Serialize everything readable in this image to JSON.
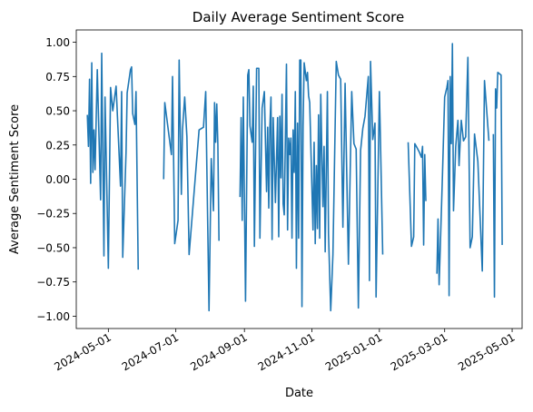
{
  "chart_data": {
    "type": "line",
    "title": "Daily Average Sentiment Score",
    "xlabel": "Date",
    "ylabel": "Average Sentiment Score",
    "xlim": [
      "2024-04-02",
      "2025-05-10"
    ],
    "ylim": [
      -1.09,
      1.09
    ],
    "grid": false,
    "line_color": "#1f77b4",
    "x_ticks": [
      {
        "date": "2024-05-01",
        "label": "2024-05-01"
      },
      {
        "date": "2024-07-01",
        "label": "2024-07-01"
      },
      {
        "date": "2024-09-01",
        "label": "2024-09-01"
      },
      {
        "date": "2024-11-01",
        "label": "2024-11-01"
      },
      {
        "date": "2025-01-01",
        "label": "2025-01-01"
      },
      {
        "date": "2025-03-01",
        "label": "2025-03-01"
      },
      {
        "date": "2025-05-01",
        "label": "2025-05-01"
      }
    ],
    "y_ticks": [
      {
        "value": 1.0,
        "label": "1.00"
      },
      {
        "value": 0.75,
        "label": "0.75"
      },
      {
        "value": 0.5,
        "label": "0.50"
      },
      {
        "value": 0.25,
        "label": "0.25"
      },
      {
        "value": 0.0,
        "label": "0.00"
      },
      {
        "value": -0.25,
        "label": "−0.25"
      },
      {
        "value": -0.5,
        "label": "−0.50"
      },
      {
        "value": -0.75,
        "label": "−0.75"
      },
      {
        "value": -1.0,
        "label": "−1.00"
      }
    ],
    "segments": [
      [
        [
          "2024-04-12",
          0.47
        ],
        [
          "2024-04-13",
          0.24
        ],
        [
          "2024-04-14",
          0.73
        ],
        [
          "2024-04-15",
          -0.03
        ],
        [
          "2024-04-16",
          0.85
        ],
        [
          "2024-04-17",
          0.05
        ],
        [
          "2024-04-18",
          0.36
        ],
        [
          "2024-04-19",
          0.07
        ],
        [
          "2024-04-20",
          0.44
        ],
        [
          "2024-04-21",
          0.8
        ],
        [
          "2024-04-24",
          -0.15
        ],
        [
          "2024-04-25",
          0.92
        ],
        [
          "2024-04-27",
          -0.56
        ],
        [
          "2024-04-28",
          0.6
        ],
        [
          "2024-05-01",
          -0.65
        ],
        [
          "2024-05-03",
          0.67
        ],
        [
          "2024-05-05",
          0.5
        ],
        [
          "2024-05-08",
          0.68
        ],
        [
          "2024-05-12",
          -0.05
        ],
        [
          "2024-05-13",
          0.64
        ],
        [
          "2024-05-14",
          -0.57
        ],
        [
          "2024-05-17",
          0.2
        ],
        [
          "2024-05-18",
          0.63
        ],
        [
          "2024-05-21",
          0.8
        ],
        [
          "2024-05-22",
          0.82
        ],
        [
          "2024-05-23",
          0.48
        ],
        [
          "2024-05-25",
          0.4
        ],
        [
          "2024-05-26",
          0.64
        ],
        [
          "2024-05-28",
          -0.66
        ]
      ],
      [
        [
          "2024-06-20",
          0.0
        ],
        [
          "2024-06-21",
          0.56
        ],
        [
          "2024-06-27",
          0.18
        ],
        [
          "2024-06-28",
          0.75
        ],
        [
          "2024-06-30",
          -0.47
        ],
        [
          "2024-07-03",
          -0.3
        ],
        [
          "2024-07-04",
          0.87
        ],
        [
          "2024-07-06",
          -0.11
        ],
        [
          "2024-07-07",
          0.36
        ],
        [
          "2024-07-09",
          0.6
        ],
        [
          "2024-07-11",
          0.31
        ],
        [
          "2024-07-13",
          -0.55
        ],
        [
          "2024-07-22",
          0.36
        ],
        [
          "2024-07-26",
          0.38
        ],
        [
          "2024-07-28",
          0.64
        ],
        [
          "2024-07-31",
          -0.96
        ],
        [
          "2024-08-02",
          0.15
        ],
        [
          "2024-08-04",
          -0.23
        ],
        [
          "2024-08-05",
          0.56
        ],
        [
          "2024-08-06",
          0.27
        ],
        [
          "2024-08-07",
          0.55
        ],
        [
          "2024-08-08",
          0.25
        ],
        [
          "2024-08-09",
          -0.45
        ]
      ],
      [
        [
          "2024-08-28",
          -0.13
        ],
        [
          "2024-08-29",
          0.45
        ],
        [
          "2024-08-30",
          -0.3
        ],
        [
          "2024-08-31",
          0.6
        ],
        [
          "2024-09-02",
          -0.89
        ],
        [
          "2024-09-04",
          0.76
        ],
        [
          "2024-09-05",
          0.8
        ],
        [
          "2024-09-06",
          0.39
        ],
        [
          "2024-09-08",
          0.27
        ],
        [
          "2024-09-09",
          0.68
        ],
        [
          "2024-09-10",
          -0.49
        ],
        [
          "2024-09-12",
          0.81
        ],
        [
          "2024-09-14",
          0.81
        ],
        [
          "2024-09-15",
          -0.43
        ],
        [
          "2024-09-17",
          0.52
        ],
        [
          "2024-09-19",
          0.64
        ],
        [
          "2024-09-21",
          -0.09
        ],
        [
          "2024-09-22",
          0.38
        ],
        [
          "2024-09-23",
          -0.21
        ],
        [
          "2024-09-24",
          0.38
        ],
        [
          "2024-09-25",
          0.6
        ],
        [
          "2024-09-26",
          -0.44
        ],
        [
          "2024-09-27",
          0.45
        ],
        [
          "2024-09-29",
          -0.17
        ],
        [
          "2024-10-01",
          0.45
        ],
        [
          "2024-10-02",
          -0.42
        ],
        [
          "2024-10-03",
          0.46
        ],
        [
          "2024-10-04",
          0.01
        ],
        [
          "2024-10-05",
          0.62
        ],
        [
          "2024-10-06",
          -0.18
        ],
        [
          "2024-10-07",
          -0.26
        ],
        [
          "2024-10-09",
          0.84
        ],
        [
          "2024-10-10",
          -0.37
        ],
        [
          "2024-10-11",
          0.3
        ],
        [
          "2024-10-12",
          0.18
        ],
        [
          "2024-10-13",
          0.3
        ],
        [
          "2024-10-14",
          -0.43
        ],
        [
          "2024-10-15",
          0.36
        ],
        [
          "2024-10-16",
          0.05
        ],
        [
          "2024-10-17",
          0.64
        ],
        [
          "2024-10-18",
          -0.65
        ],
        [
          "2024-10-19",
          0.41
        ],
        [
          "2024-10-20",
          -0.43
        ],
        [
          "2024-10-21",
          0.87
        ],
        [
          "2024-10-22",
          0.87
        ],
        [
          "2024-10-23",
          -0.93
        ],
        [
          "2024-10-24",
          0.39
        ],
        [
          "2024-10-25",
          0.85
        ],
        [
          "2024-10-27",
          0.72
        ],
        [
          "2024-10-28",
          0.78
        ],
        [
          "2024-10-29",
          0.61
        ],
        [
          "2024-10-30",
          0.56
        ],
        [
          "2024-11-02",
          -0.37
        ],
        [
          "2024-11-03",
          0.27
        ],
        [
          "2024-11-04",
          -0.47
        ],
        [
          "2024-11-05",
          0.1
        ],
        [
          "2024-11-06",
          -0.36
        ],
        [
          "2024-11-07",
          0.47
        ],
        [
          "2024-11-08",
          -0.43
        ],
        [
          "2024-11-09",
          0.62
        ],
        [
          "2024-11-10",
          0.19
        ],
        [
          "2024-11-11",
          -0.2
        ],
        [
          "2024-11-12",
          0.24
        ],
        [
          "2024-11-13",
          -0.53
        ],
        [
          "2024-11-15",
          0.64
        ],
        [
          "2024-11-16",
          -0.4
        ],
        [
          "2024-11-18",
          -0.96
        ],
        [
          "2024-11-20",
          -0.55
        ],
        [
          "2024-11-23",
          0.86
        ],
        [
          "2024-11-25",
          0.76
        ],
        [
          "2024-11-27",
          0.73
        ],
        [
          "2024-11-29",
          -0.35
        ],
        [
          "2024-12-01",
          0.7
        ],
        [
          "2024-12-04",
          -0.62
        ],
        [
          "2024-12-07",
          0.64
        ],
        [
          "2024-12-09",
          0.26
        ],
        [
          "2024-12-11",
          0.22
        ],
        [
          "2024-12-13",
          -0.94
        ],
        [
          "2024-12-15",
          0.21
        ],
        [
          "2024-12-17",
          0.37
        ],
        [
          "2024-12-19",
          0.46
        ],
        [
          "2024-12-22",
          0.75
        ],
        [
          "2024-12-23",
          -0.74
        ],
        [
          "2024-12-24",
          0.86
        ],
        [
          "2024-12-26",
          0.29
        ],
        [
          "2024-12-28",
          0.41
        ],
        [
          "2024-12-29",
          -0.86
        ],
        [
          "2025-01-01",
          0.64
        ],
        [
          "2025-01-02",
          0.27
        ],
        [
          "2025-01-04",
          -0.55
        ]
      ],
      [
        [
          "2025-01-27",
          0.27
        ],
        [
          "2025-01-30",
          -0.49
        ],
        [
          "2025-02-01",
          -0.42
        ],
        [
          "2025-02-02",
          0.26
        ],
        [
          "2025-02-04",
          0.23
        ],
        [
          "2025-02-06",
          0.2
        ],
        [
          "2025-02-08",
          0.16
        ],
        [
          "2025-02-09",
          0.24
        ],
        [
          "2025-02-10",
          -0.48
        ],
        [
          "2025-02-11",
          0.18
        ],
        [
          "2025-02-12",
          -0.16
        ]
      ],
      [
        [
          "2025-02-22",
          -0.69
        ],
        [
          "2025-02-23",
          -0.29
        ],
        [
          "2025-02-24",
          -0.77
        ],
        [
          "2025-02-25",
          -0.51
        ],
        [
          "2025-02-27",
          0.03
        ],
        [
          "2025-03-01",
          0.6
        ],
        [
          "2025-03-03",
          0.67
        ],
        [
          "2025-03-04",
          0.72
        ],
        [
          "2025-03-05",
          -0.85
        ],
        [
          "2025-03-06",
          0.75
        ],
        [
          "2025-03-07",
          0.26
        ],
        [
          "2025-03-08",
          0.99
        ],
        [
          "2025-03-09",
          -0.23
        ],
        [
          "2025-03-11",
          0.24
        ],
        [
          "2025-03-13",
          0.43
        ],
        [
          "2025-03-14",
          0.1
        ],
        [
          "2025-03-16",
          0.43
        ],
        [
          "2025-03-18",
          0.28
        ],
        [
          "2025-03-20",
          0.31
        ],
        [
          "2025-03-22",
          0.89
        ],
        [
          "2025-03-24",
          -0.5
        ],
        [
          "2025-03-26",
          -0.42
        ],
        [
          "2025-03-28",
          0.33
        ],
        [
          "2025-03-31",
          0.13
        ],
        [
          "2025-04-04",
          -0.67
        ],
        [
          "2025-04-06",
          0.72
        ],
        [
          "2025-04-10",
          0.28
        ]
      ],
      [
        [
          "2025-04-14",
          0.33
        ],
        [
          "2025-04-15",
          -0.86
        ],
        [
          "2025-04-16",
          0.66
        ],
        [
          "2025-04-17",
          0.52
        ],
        [
          "2025-04-18",
          0.78
        ],
        [
          "2025-04-21",
          0.76
        ],
        [
          "2025-04-22",
          -0.48
        ]
      ]
    ]
  }
}
